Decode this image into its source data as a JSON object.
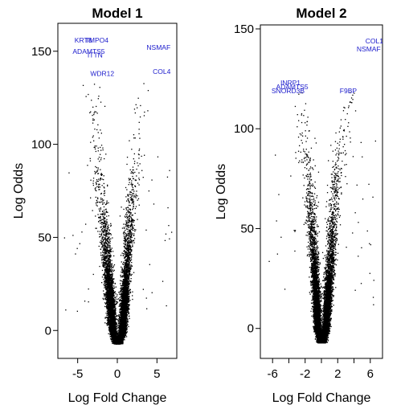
{
  "chart_data": [
    {
      "type": "scatter",
      "title": "Model 1",
      "xlabel": "Log Fold Change",
      "ylabel": "Log Odds",
      "xlim": [
        -7.5,
        7.5
      ],
      "ylim": [
        -15,
        165
      ],
      "xticks": [
        -5,
        0,
        5
      ],
      "yticks": [
        0,
        50,
        100,
        150
      ],
      "grid": false,
      "legend": "none",
      "point_color": "#000000",
      "label_color": "#1a1acc",
      "point_cloud": {
        "count": 9000,
        "min_y": -7,
        "left_arm": [
          [
            -7,
            -0.2
          ],
          [
            0,
            -0.6
          ],
          [
            25,
            -1.1
          ],
          [
            50,
            -1.6
          ],
          [
            75,
            -2.1
          ],
          [
            100,
            -2.6
          ],
          [
            120,
            -2.9
          ],
          [
            135,
            -3.2
          ]
        ],
        "right_arm": [
          [
            -7,
            0.2
          ],
          [
            0,
            0.6
          ],
          [
            25,
            1.0
          ],
          [
            50,
            1.4
          ],
          [
            75,
            1.8
          ],
          [
            100,
            2.3
          ],
          [
            120,
            2.8
          ],
          [
            135,
            3.3
          ]
        ]
      },
      "labeled_genes": [
        {
          "name": "KRT8",
          "x": -4.3,
          "y": 156
        },
        {
          "name": "TMPO4",
          "x": -2.6,
          "y": 156
        },
        {
          "name": "ADAMTS5",
          "x": -3.6,
          "y": 150
        },
        {
          "name": "ITTN",
          "x": -2.8,
          "y": 148
        },
        {
          "name": "NSMAF",
          "x": 5.2,
          "y": 152
        },
        {
          "name": "COL4",
          "x": 5.6,
          "y": 139
        },
        {
          "name": "WDR12",
          "x": -1.9,
          "y": 138
        }
      ]
    },
    {
      "type": "scatter",
      "title": "Model 2",
      "xlabel": "Log Fold Change",
      "ylabel": "Log Odds",
      "xlim": [
        -7.5,
        7.5
      ],
      "ylim": [
        -15,
        152
      ],
      "xticks": [
        -6,
        -2,
        2,
        6
      ],
      "extra_ticks": [
        -4,
        0,
        4
      ],
      "yticks": [
        0,
        50,
        100,
        150
      ],
      "grid": false,
      "legend": "none",
      "point_color": "#000000",
      "label_color": "#1a1acc",
      "point_cloud": {
        "count": 9000,
        "min_y": -7,
        "left_arm": [
          [
            -7,
            -0.2
          ],
          [
            0,
            -0.5
          ],
          [
            25,
            -0.8
          ],
          [
            50,
            -1.2
          ],
          [
            75,
            -1.6
          ],
          [
            100,
            -2.2
          ],
          [
            110,
            -2.7
          ],
          [
            120,
            -3.0
          ]
        ],
        "right_arm": [
          [
            -7,
            0.2
          ],
          [
            0,
            0.5
          ],
          [
            25,
            0.9
          ],
          [
            50,
            1.3
          ],
          [
            75,
            1.7
          ],
          [
            100,
            2.5
          ],
          [
            110,
            3.2
          ],
          [
            120,
            3.8
          ]
        ]
      },
      "labeled_genes": [
        {
          "name": "COL1",
          "x": 6.5,
          "y": 144
        },
        {
          "name": "NSMAF",
          "x": 5.8,
          "y": 140
        },
        {
          "name": "INRP1",
          "x": -3.8,
          "y": 123
        },
        {
          "name": "ADAMTS5",
          "x": -3.6,
          "y": 121
        },
        {
          "name": "SNORD3B",
          "x": -4.1,
          "y": 119
        },
        {
          "name": "F9BP",
          "x": 3.3,
          "y": 119
        }
      ]
    }
  ]
}
